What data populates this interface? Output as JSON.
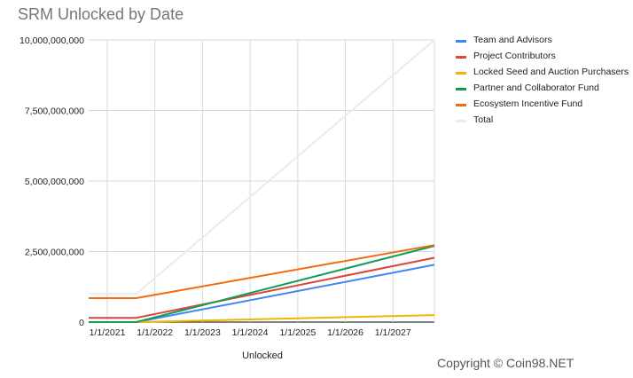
{
  "chart_data": {
    "type": "line",
    "title": "SRM Unlocked by Date",
    "xlabel": "Unlocked",
    "ylabel": "",
    "x_ticks": [
      "1/1/2021",
      "1/1/2022",
      "1/1/2023",
      "1/1/2024",
      "1/1/2025",
      "1/1/2026",
      "1/1/2027"
    ],
    "x_range": [
      "2020-08-11",
      "2027-11-15"
    ],
    "ylim": [
      0,
      10000000000
    ],
    "y_ticks": [
      0,
      2500000000,
      5000000000,
      7500000000,
      10000000000
    ],
    "y_tick_labels": [
      "0",
      "2,500,000,000",
      "5,000,000,000",
      "7,500,000,000",
      "10,000,000,000"
    ],
    "grid": true,
    "legend_position": "right",
    "series": [
      {
        "name": "Team and Advisors",
        "color": "#4285F4",
        "points": [
          [
            "2020-08-11",
            0
          ],
          [
            "2021-08-11",
            0
          ],
          [
            "2027-11-15",
            2030000000
          ]
        ]
      },
      {
        "name": "Project Contributors",
        "color": "#DB4437",
        "points": [
          [
            "2020-08-11",
            150000000
          ],
          [
            "2021-08-11",
            150000000
          ],
          [
            "2027-11-15",
            2280000000
          ]
        ]
      },
      {
        "name": "Locked Seed and Auction Purchasers",
        "color": "#F4B400",
        "points": [
          [
            "2020-08-11",
            0
          ],
          [
            "2021-08-11",
            0
          ],
          [
            "2027-11-15",
            250000000
          ]
        ]
      },
      {
        "name": "Partner and Collaborator Fund",
        "color": "#0F9D58",
        "points": [
          [
            "2020-08-11",
            0
          ],
          [
            "2021-08-11",
            0
          ],
          [
            "2027-11-15",
            2700000000
          ]
        ]
      },
      {
        "name": "Ecosystem Incentive Fund",
        "color": "#F26B0F",
        "points": [
          [
            "2020-08-11",
            850000000
          ],
          [
            "2021-08-11",
            850000000
          ],
          [
            "2027-11-15",
            2730000000
          ]
        ]
      },
      {
        "name": "Total",
        "color": "#EBEBEB",
        "points": [
          [
            "2020-08-11",
            1000000000
          ],
          [
            "2021-08-11",
            1000000000
          ],
          [
            "2027-11-15",
            10000000000
          ]
        ]
      }
    ]
  },
  "copyright": "Copyright © Coin98.NET"
}
